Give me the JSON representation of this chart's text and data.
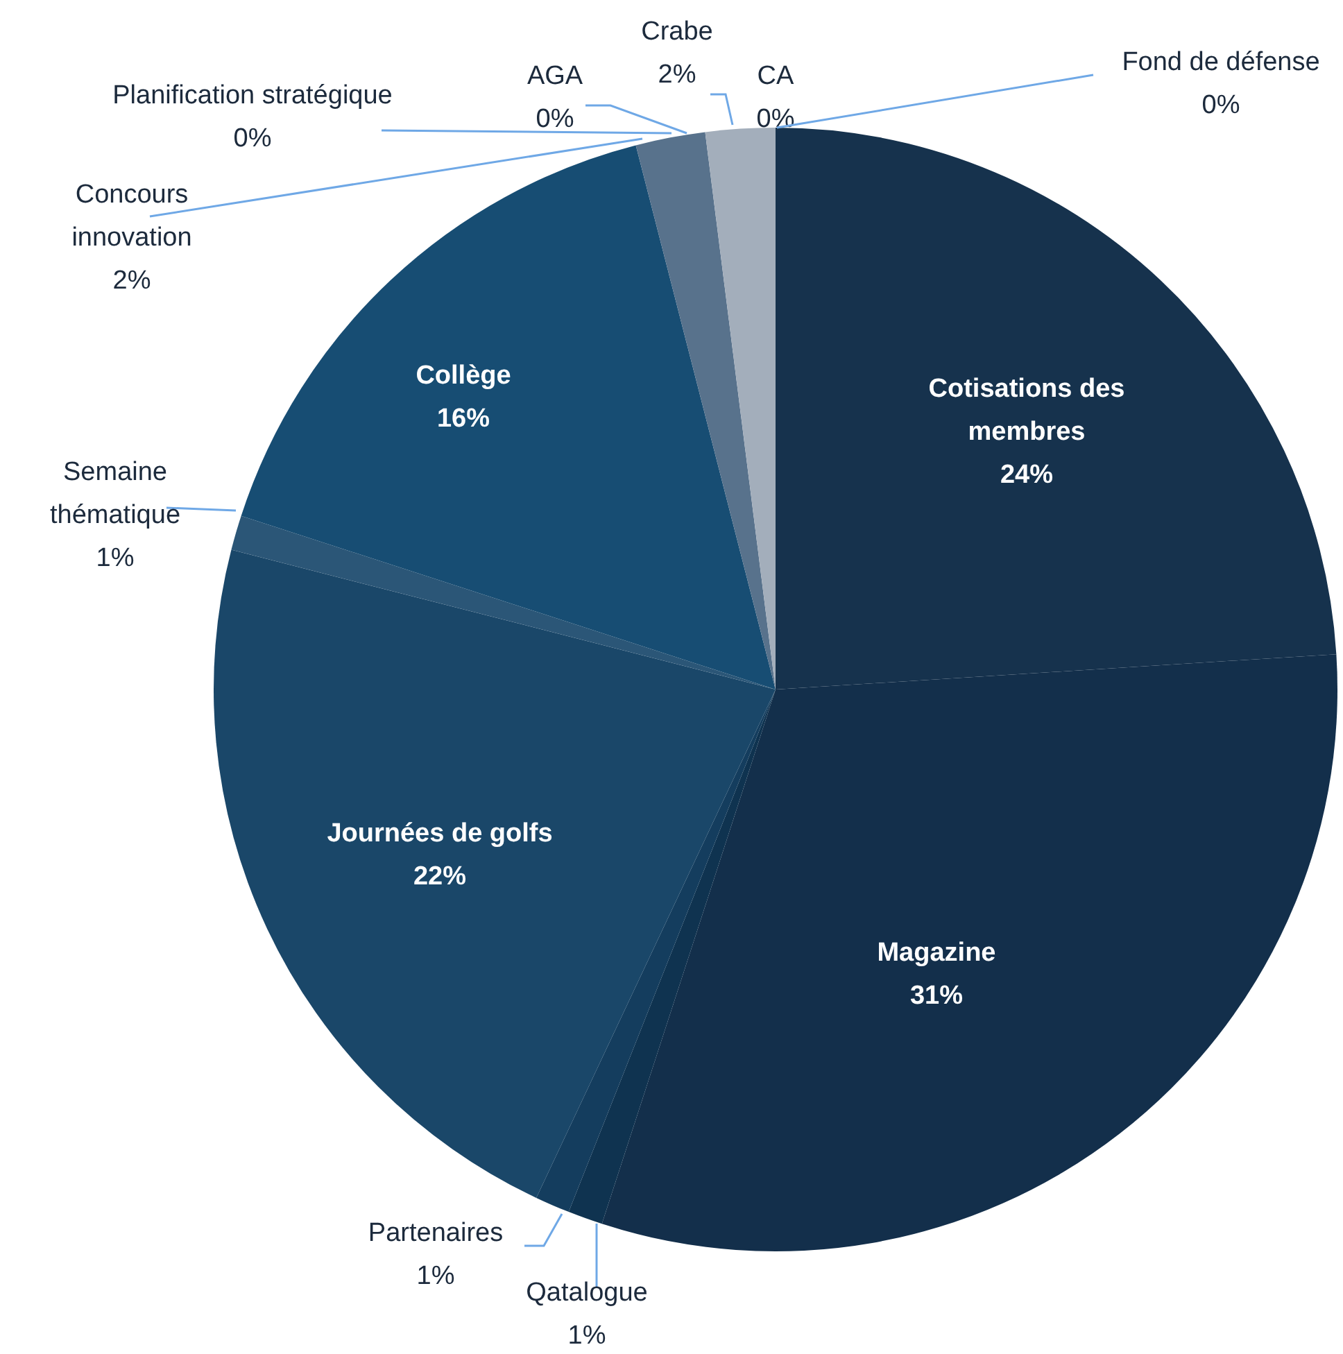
{
  "chart_data": {
    "type": "pie",
    "categories": [
      "Cotisations des membres",
      "Magazine",
      "Qatalogue",
      "Partenaires",
      "Journées de golfs",
      "Semaine thématique",
      "Collège",
      "Concours innovation",
      "Planification stratégique",
      "AGA",
      "Crabe",
      "CA",
      "Fond de défense"
    ],
    "values": [
      24,
      31,
      1,
      1,
      22,
      1,
      16,
      2,
      0,
      0,
      2,
      0,
      0
    ],
    "value_labels": [
      "24%",
      "31%",
      "1%",
      "1%",
      "22%",
      "1%",
      "16%",
      "2%",
      "0%",
      "0%",
      "2%",
      "0%",
      "0%"
    ],
    "colors": [
      "#16324d",
      "#132f4b",
      "#0f3350",
      "#143d5e",
      "#1a4769",
      "#2b5677",
      "#174d73",
      "#58728c",
      "#6e8296",
      "#8494a6",
      "#a3aebb",
      "#b5bec8",
      "#c5ccd4"
    ],
    "legend": false
  }
}
